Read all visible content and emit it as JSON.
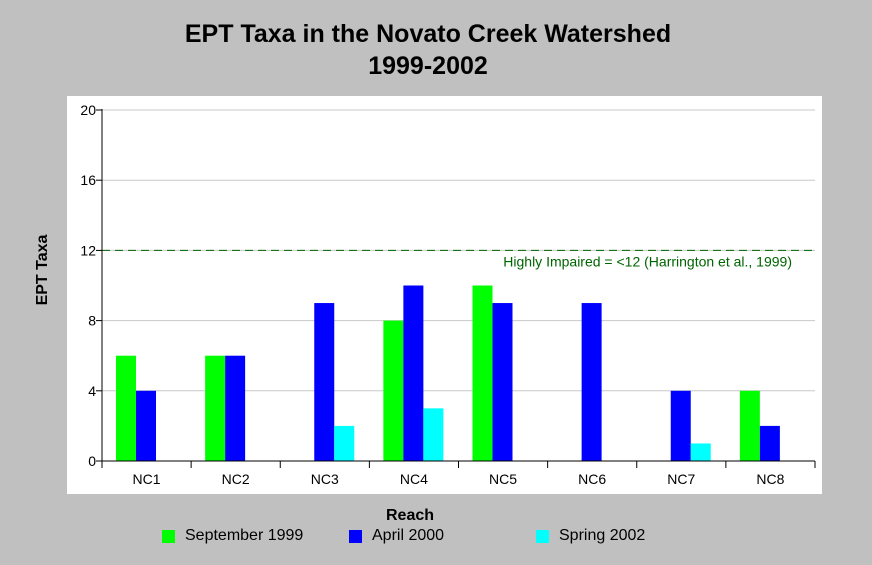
{
  "chart_data": {
    "type": "bar",
    "title": "EPT Taxa in the Novato Creek Watershed",
    "subtitle": "1999-2002",
    "xlabel": "Reach",
    "ylabel": "EPT Taxa",
    "categories": [
      "NC1",
      "NC2",
      "NC3",
      "NC4",
      "NC5",
      "NC6",
      "NC7",
      "NC8"
    ],
    "series": [
      {
        "name": "September 1999",
        "color": "#00ff00",
        "values": [
          6,
          6,
          null,
          8,
          10,
          null,
          null,
          4
        ]
      },
      {
        "name": "April 2000",
        "color": "#0000ff",
        "values": [
          4,
          6,
          9,
          10,
          9,
          9,
          4,
          2
        ]
      },
      {
        "name": "Spring 2002",
        "color": "#00ffff",
        "values": [
          null,
          null,
          2,
          3,
          null,
          null,
          1,
          null
        ]
      }
    ],
    "ylim": [
      0,
      20
    ],
    "yticks": [
      0,
      4,
      8,
      12,
      16,
      20
    ],
    "grid": true,
    "legend_position": "bottom",
    "reference_line": {
      "value": 12,
      "label": "Highly Impaired = <12 (Harrington et al., 1999)",
      "color": "#006400"
    }
  }
}
